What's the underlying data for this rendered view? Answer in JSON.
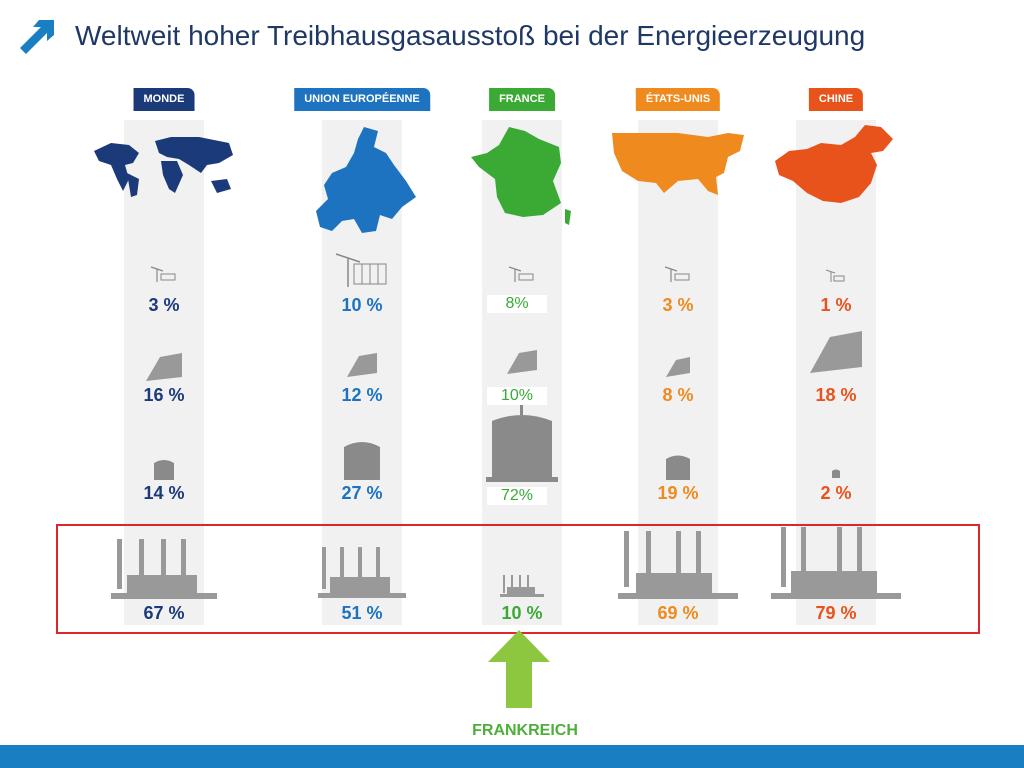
{
  "header": {
    "title": "Weltweit hoher Treibhausgasausstoß bei der Energieerzeugung",
    "logo_icon": "arrow-up-right-icon",
    "brand_color": "#1a7ec2"
  },
  "columns": [
    {
      "id": "monde",
      "label": "MONDE",
      "color": "#1b3a7a",
      "map_icon": "world-map-icon",
      "values": {
        "wind": "3 %",
        "hydro": "16 %",
        "nuclear": "14 %",
        "fossil": "67 %"
      }
    },
    {
      "id": "ue",
      "label": "UNION EUROPÉENNE",
      "color": "#1d73c0",
      "map_icon": "europe-map-icon",
      "values": {
        "wind": "10 %",
        "hydro": "12 %",
        "nuclear": "27 %",
        "fossil": "51 %"
      }
    },
    {
      "id": "france",
      "label": "FRANCE",
      "color": "#3aaa35",
      "map_icon": "france-map-icon",
      "values": {
        "wind": "8%",
        "hydro": "10%",
        "nuclear": "72%",
        "fossil": "10 %"
      }
    },
    {
      "id": "usa",
      "label": "ÉTATS-UNIS",
      "color": "#ef8a1f",
      "map_icon": "usa-map-icon",
      "values": {
        "wind": "3 %",
        "hydro": "8 %",
        "nuclear": "19 %",
        "fossil": "69 %"
      }
    },
    {
      "id": "chine",
      "label": "CHINE",
      "color": "#e8531b",
      "map_icon": "china-map-icon",
      "values": {
        "wind": "1 %",
        "hydro": "18 %",
        "nuclear": "2 %",
        "fossil": "79 %"
      }
    }
  ],
  "icons": {
    "wind": "wind-turbine-icon",
    "hydro": "dam-icon",
    "nuclear": "nuclear-plant-icon",
    "fossil": "coal-power-plant-icon"
  },
  "highlight_color": "#e0262d",
  "callout": {
    "label": "FRANKREICH",
    "color": "#4caf38",
    "arrow_color": "#8dc63f"
  }
}
